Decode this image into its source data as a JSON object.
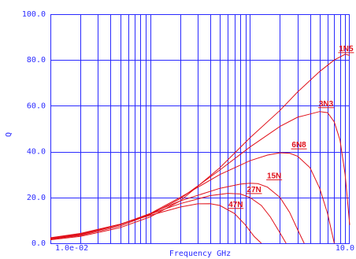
{
  "chart_data": {
    "type": "line",
    "title": "",
    "xlabel": "Frequency GHz",
    "ylabel": "Q",
    "x_scale": "log",
    "xlim": [
      0.01,
      10.0
    ],
    "ylim": [
      0,
      100
    ],
    "y_tick_labels": [
      "0.0",
      "20.0",
      "40.0",
      "60.0",
      "80.0",
      "100.0"
    ],
    "y_tick_values": [
      0,
      20,
      40,
      60,
      80,
      100
    ],
    "x_tick_labels": [
      "1.0e-02",
      "10.0"
    ],
    "x_tick_values": [
      0.01,
      10.0
    ],
    "grid": true,
    "legend": "inline labels",
    "colors": {
      "grid": "#2a2aff",
      "series": "#e0101a",
      "background": "#ffffff"
    },
    "series": [
      {
        "name": "1N5",
        "label_x": 9.2,
        "label_y": 82.5,
        "points": [
          [
            0.01,
            1.5
          ],
          [
            0.02,
            3.0
          ],
          [
            0.05,
            6.8
          ],
          [
            0.1,
            11.5
          ],
          [
            0.2,
            18.5
          ],
          [
            0.5,
            33.0
          ],
          [
            1.0,
            46.0
          ],
          [
            2.0,
            58.0
          ],
          [
            3.0,
            66.0
          ],
          [
            5.0,
            75.0
          ],
          [
            7.0,
            80.0
          ],
          [
            9.0,
            82.5
          ],
          [
            10.0,
            82.0
          ]
        ]
      },
      {
        "name": "3N3",
        "label_x": 5.8,
        "label_y": 58.5,
        "points": [
          [
            0.01,
            1.8
          ],
          [
            0.02,
            3.4
          ],
          [
            0.05,
            7.5
          ],
          [
            0.1,
            12.5
          ],
          [
            0.2,
            19.5
          ],
          [
            0.5,
            32.0
          ],
          [
            1.0,
            42.0
          ],
          [
            2.0,
            51.0
          ],
          [
            3.0,
            55.0
          ],
          [
            5.0,
            57.5
          ],
          [
            6.0,
            57.0
          ],
          [
            7.0,
            53.0
          ],
          [
            8.0,
            45.0
          ],
          [
            9.0,
            30.0
          ],
          [
            10.0,
            8.0
          ]
        ]
      },
      {
        "name": "6N8",
        "label_x": 3.1,
        "label_y": 40.5,
        "points": [
          [
            0.01,
            2.0
          ],
          [
            0.02,
            3.7
          ],
          [
            0.05,
            8.0
          ],
          [
            0.1,
            13.0
          ],
          [
            0.2,
            20.0
          ],
          [
            0.5,
            30.0
          ],
          [
            1.0,
            36.0
          ],
          [
            1.5,
            38.5
          ],
          [
            2.0,
            39.5
          ],
          [
            2.5,
            39.3
          ],
          [
            3.0,
            38.0
          ],
          [
            4.0,
            33.0
          ],
          [
            5.0,
            24.0
          ],
          [
            6.0,
            13.0
          ],
          [
            7.0,
            0.0
          ]
        ]
      },
      {
        "name": "15N",
        "label_x": 1.75,
        "label_y": 27.0,
        "points": [
          [
            0.01,
            2.2
          ],
          [
            0.02,
            4.0
          ],
          [
            0.05,
            8.2
          ],
          [
            0.1,
            13.0
          ],
          [
            0.2,
            18.5
          ],
          [
            0.5,
            24.0
          ],
          [
            0.8,
            25.8
          ],
          [
            1.0,
            26.2
          ],
          [
            1.2,
            26.0
          ],
          [
            1.5,
            24.5
          ],
          [
            2.0,
            20.0
          ],
          [
            2.5,
            13.5
          ],
          [
            3.0,
            6.0
          ],
          [
            3.5,
            0.0
          ]
        ]
      },
      {
        "name": "27N",
        "label_x": 1.1,
        "label_y": 21.0,
        "points": [
          [
            0.01,
            2.3
          ],
          [
            0.02,
            4.2
          ],
          [
            0.05,
            8.3
          ],
          [
            0.1,
            12.7
          ],
          [
            0.2,
            17.3
          ],
          [
            0.4,
            20.8
          ],
          [
            0.6,
            21.8
          ],
          [
            0.8,
            21.5
          ],
          [
            1.0,
            20.0
          ],
          [
            1.3,
            16.5
          ],
          [
            1.6,
            11.5
          ],
          [
            2.0,
            4.5
          ],
          [
            2.3,
            0.0
          ]
        ]
      },
      {
        "name": "47N",
        "label_x": 0.72,
        "label_y": 14.5,
        "points": [
          [
            0.01,
            2.4
          ],
          [
            0.02,
            4.3
          ],
          [
            0.05,
            8.3
          ],
          [
            0.1,
            12.2
          ],
          [
            0.2,
            15.8
          ],
          [
            0.3,
            17.2
          ],
          [
            0.4,
            17.3
          ],
          [
            0.5,
            16.5
          ],
          [
            0.7,
            13.0
          ],
          [
            0.9,
            8.0
          ],
          [
            1.1,
            3.0
          ],
          [
            1.3,
            0.0
          ]
        ]
      }
    ]
  }
}
